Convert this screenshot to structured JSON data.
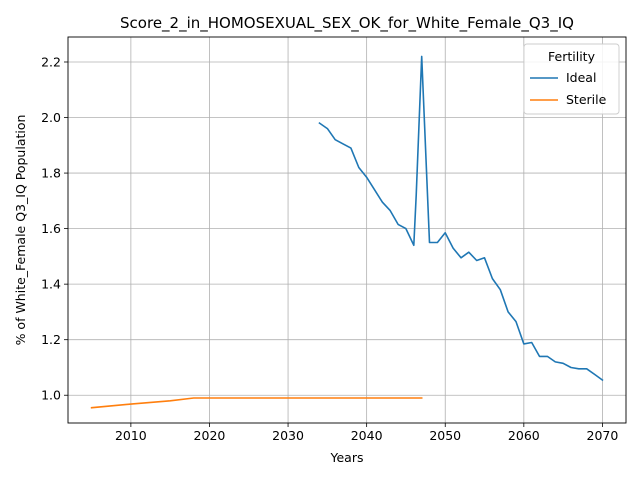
{
  "chart_data": {
    "type": "line",
    "title": "Score_2_in_HOMOSEXUAL_SEX_OK_for_White_Female_Q3_IQ",
    "xlabel": "Years",
    "ylabel": "% of White_Female Q3_IQ Population",
    "xlim": [
      2002,
      2073
    ],
    "ylim": [
      0.9,
      2.29
    ],
    "xticks": [
      2010,
      2020,
      2030,
      2040,
      2050,
      2060,
      2070
    ],
    "yticks": [
      1.0,
      1.2,
      1.4,
      1.6,
      1.8,
      2.0,
      2.2
    ],
    "grid": true,
    "legend": {
      "title": "Fertility",
      "placement": "top-right"
    },
    "series": [
      {
        "name": "Ideal",
        "color": "#1f77b4",
        "points": [
          [
            2034,
            1.98
          ],
          [
            2035,
            1.96
          ],
          [
            2036,
            1.92
          ],
          [
            2037,
            1.905
          ],
          [
            2038,
            1.89
          ],
          [
            2039,
            1.82
          ],
          [
            2040,
            1.785
          ],
          [
            2041,
            1.74
          ],
          [
            2042,
            1.695
          ],
          [
            2043,
            1.665
          ],
          [
            2044,
            1.615
          ],
          [
            2045,
            1.6
          ],
          [
            2046,
            1.54
          ],
          [
            2046.3,
            1.72
          ],
          [
            2047,
            2.22
          ],
          [
            2048,
            1.55
          ],
          [
            2049,
            1.55
          ],
          [
            2050,
            1.585
          ],
          [
            2051,
            1.53
          ],
          [
            2052,
            1.495
          ],
          [
            2053,
            1.515
          ],
          [
            2054,
            1.485
          ],
          [
            2055,
            1.495
          ],
          [
            2056,
            1.42
          ],
          [
            2057,
            1.38
          ],
          [
            2058,
            1.3
          ],
          [
            2059,
            1.265
          ],
          [
            2060,
            1.185
          ],
          [
            2061,
            1.19
          ],
          [
            2062,
            1.14
          ],
          [
            2063,
            1.14
          ],
          [
            2064,
            1.12
          ],
          [
            2065,
            1.115
          ],
          [
            2066,
            1.1
          ],
          [
            2067,
            1.095
          ],
          [
            2068,
            1.095
          ],
          [
            2069,
            1.075
          ],
          [
            2070,
            1.055
          ]
        ]
      },
      {
        "name": "Sterile",
        "color": "#ff7f0e",
        "points": [
          [
            2005,
            0.955
          ],
          [
            2010,
            0.968
          ],
          [
            2015,
            0.98
          ],
          [
            2018,
            0.99
          ],
          [
            2020,
            0.99
          ],
          [
            2025,
            0.99
          ],
          [
            2030,
            0.99
          ],
          [
            2035,
            0.99
          ],
          [
            2040,
            0.99
          ],
          [
            2045,
            0.99
          ],
          [
            2047,
            0.99
          ]
        ]
      }
    ]
  }
}
